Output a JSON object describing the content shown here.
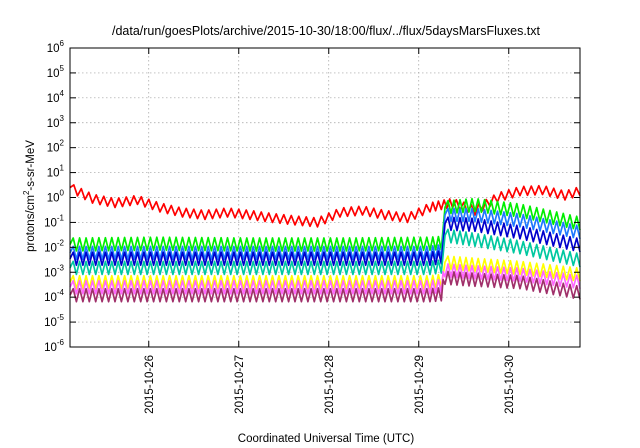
{
  "chart_data": {
    "type": "line",
    "title": "/data/run/goesPlots/archive/2015-10-30/18:00/flux/../flux/5daysMarsFluxes.txt",
    "xlabel": "Coordinated Universal Time (UTC)",
    "ylabel": {
      "base": "protons/cm",
      "sup": "2",
      "rest": "-s-sr-MeV"
    },
    "y_scale": "log",
    "ylim_exponents": [
      -6,
      6
    ],
    "y_ticks": [
      {
        "base": "10",
        "exp": "-6"
      },
      {
        "base": "10",
        "exp": "-5"
      },
      {
        "base": "10",
        "exp": "-4"
      },
      {
        "base": "10",
        "exp": "-3"
      },
      {
        "base": "10",
        "exp": "-2"
      },
      {
        "base": "10",
        "exp": "-1"
      },
      {
        "base": "10",
        "exp": "0"
      },
      {
        "base": "10",
        "exp": "1"
      },
      {
        "base": "10",
        "exp": "2"
      },
      {
        "base": "10",
        "exp": "3"
      },
      {
        "base": "10",
        "exp": "4"
      },
      {
        "base": "10",
        "exp": "5"
      },
      {
        "base": "10",
        "exp": "6"
      }
    ],
    "xlim": [
      "2015-10-25T03:00",
      "2015-10-30T19:00"
    ],
    "x_ticks": [
      "2015-10-26",
      "2015-10-27",
      "2015-10-28",
      "2015-10-29",
      "2015-10-30"
    ],
    "grid": true,
    "legend": "none",
    "series": [
      {
        "color": "#ff0000",
        "x": [
          "2015-10-25T03:00",
          "2015-10-25T09:00",
          "2015-10-25T15:00",
          "2015-10-25T21:00",
          "2015-10-26T03:00",
          "2015-10-26T09:00",
          "2015-10-26T15:00",
          "2015-10-26T21:00",
          "2015-10-27T03:00",
          "2015-10-27T09:00",
          "2015-10-27T15:00",
          "2015-10-27T21:00",
          "2015-10-28T03:00",
          "2015-10-28T09:00",
          "2015-10-28T15:00",
          "2015-10-28T21:00",
          "2015-10-29T03:00",
          "2015-10-29T06:00",
          "2015-10-29T09:00",
          "2015-10-29T15:00",
          "2015-10-29T21:00",
          "2015-10-30T03:00",
          "2015-10-30T09:00",
          "2015-10-30T15:00",
          "2015-10-30T19:00"
        ],
        "y": [
          2.5,
          0.9,
          0.6,
          0.8,
          0.4,
          0.25,
          0.2,
          0.25,
          0.2,
          0.15,
          0.12,
          0.1,
          0.25,
          0.3,
          0.2,
          0.15,
          0.4,
          0.5,
          0.6,
          0.3,
          1.0,
          1.8,
          2.0,
          1.2,
          1.8
        ]
      },
      {
        "color": "#00ee00",
        "x": [
          "2015-10-25T03:00",
          "2015-10-26T03:00",
          "2015-10-27T03:00",
          "2015-10-28T03:00",
          "2015-10-29T03:00",
          "2015-10-29T06:00",
          "2015-10-29T07:00",
          "2015-10-29T15:00",
          "2015-10-30T03:00",
          "2015-10-30T19:00"
        ],
        "y": [
          0.013,
          0.014,
          0.013,
          0.013,
          0.014,
          0.015,
          0.4,
          0.5,
          0.3,
          0.09
        ]
      },
      {
        "color": "#1e78ff",
        "x": [
          "2015-10-25T03:00",
          "2015-10-26T03:00",
          "2015-10-27T03:00",
          "2015-10-28T03:00",
          "2015-10-29T03:00",
          "2015-10-29T06:00",
          "2015-10-29T07:00",
          "2015-10-29T15:00",
          "2015-10-30T03:00",
          "2015-10-30T19:00"
        ],
        "y": [
          0.006,
          0.006,
          0.006,
          0.006,
          0.006,
          0.007,
          0.2,
          0.2,
          0.12,
          0.04
        ]
      },
      {
        "color": "#0000cc",
        "x": [
          "2015-10-25T03:00",
          "2015-10-26T03:00",
          "2015-10-27T03:00",
          "2015-10-28T03:00",
          "2015-10-29T03:00",
          "2015-10-29T06:00",
          "2015-10-29T07:00",
          "2015-10-29T15:00",
          "2015-10-30T03:00",
          "2015-10-30T19:00"
        ],
        "y": [
          0.0035,
          0.0035,
          0.0035,
          0.0035,
          0.0035,
          0.004,
          0.09,
          0.08,
          0.04,
          0.012
        ]
      },
      {
        "color": "#00c8a0",
        "x": [
          "2015-10-25T03:00",
          "2015-10-26T03:00",
          "2015-10-27T03:00",
          "2015-10-28T03:00",
          "2015-10-29T03:00",
          "2015-10-29T06:00",
          "2015-10-29T07:00",
          "2015-10-29T15:00",
          "2015-10-30T03:00",
          "2015-10-30T19:00"
        ],
        "y": [
          0.0015,
          0.0015,
          0.0015,
          0.0015,
          0.0015,
          0.0017,
          0.03,
          0.02,
          0.01,
          0.003
        ]
      },
      {
        "color": "#ffff00",
        "x": [
          "2015-10-25T03:00",
          "2015-10-26T03:00",
          "2015-10-27T03:00",
          "2015-10-28T03:00",
          "2015-10-29T03:00",
          "2015-10-29T06:00",
          "2015-10-29T07:00",
          "2015-10-29T15:00",
          "2015-10-30T03:00",
          "2015-10-30T19:00"
        ],
        "y": [
          0.0004,
          0.0004,
          0.0004,
          0.0004,
          0.0004,
          0.00045,
          0.0025,
          0.002,
          0.0015,
          0.0008
        ]
      },
      {
        "color": "#ff66ff",
        "x": [
          "2015-10-25T03:00",
          "2015-10-26T03:00",
          "2015-10-27T03:00",
          "2015-10-28T03:00",
          "2015-10-29T03:00",
          "2015-10-29T06:00",
          "2015-10-29T07:00",
          "2015-10-29T15:00",
          "2015-10-30T03:00",
          "2015-10-30T19:00"
        ],
        "y": [
          0.00025,
          0.00025,
          0.00025,
          0.00025,
          0.00025,
          0.00028,
          0.0012,
          0.001,
          0.0008,
          0.0004
        ]
      },
      {
        "color": "#a0306a",
        "x": [
          "2015-10-25T03:00",
          "2015-10-26T03:00",
          "2015-10-27T03:00",
          "2015-10-28T03:00",
          "2015-10-29T03:00",
          "2015-10-29T06:00",
          "2015-10-29T07:00",
          "2015-10-29T15:00",
          "2015-10-30T03:00",
          "2015-10-30T19:00"
        ],
        "y": [
          0.00012,
          0.00012,
          0.00012,
          0.00012,
          0.00012,
          0.00013,
          0.0006,
          0.0005,
          0.0004,
          0.00015
        ]
      }
    ]
  }
}
